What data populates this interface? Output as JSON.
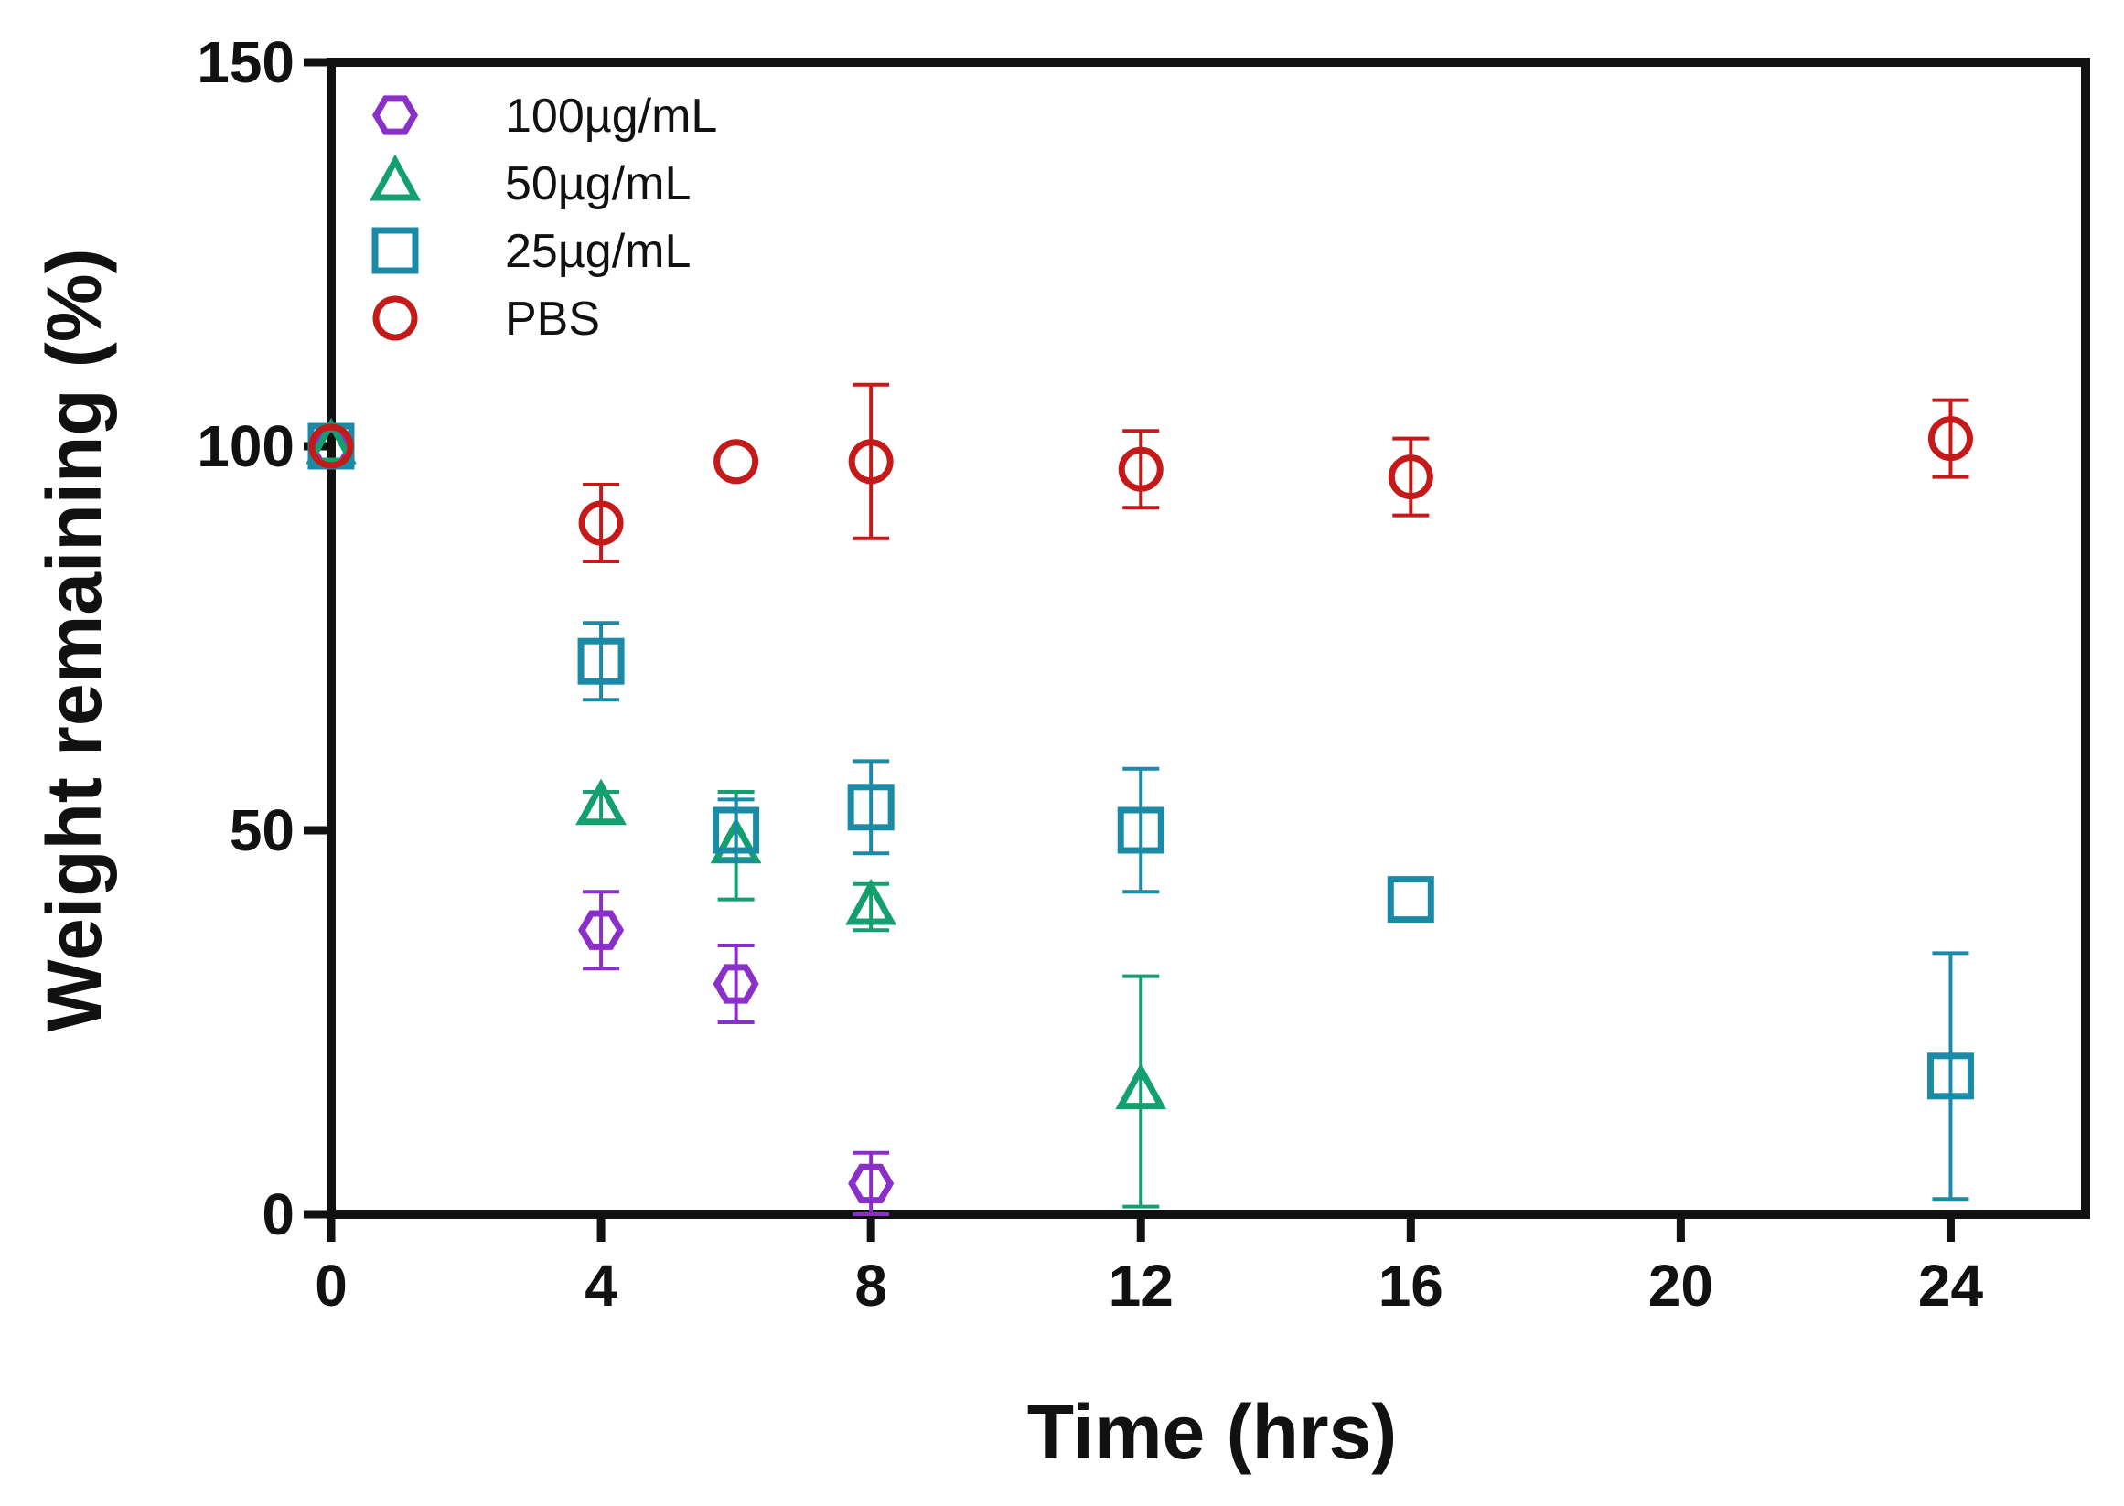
{
  "chart_data": {
    "type": "scatter",
    "title": "",
    "xlabel": "Time (hrs)",
    "ylabel": "Weight remaining (%)",
    "xlim": [
      0,
      26
    ],
    "ylim": [
      0,
      150
    ],
    "xticks": [
      0,
      4,
      8,
      12,
      16,
      20,
      24
    ],
    "yticks": [
      0,
      50,
      100,
      150
    ],
    "legend_position": "top-left",
    "series": [
      {
        "name": "100µg/mL",
        "marker": "hexagon",
        "color": "#8b2fc9",
        "points": [
          {
            "x": 0,
            "y": 100,
            "err": 0
          },
          {
            "x": 4,
            "y": 37,
            "err": 5
          },
          {
            "x": 6,
            "y": 30,
            "err": 5
          },
          {
            "x": 8,
            "y": 4,
            "err": 4
          }
        ]
      },
      {
        "name": "50µg/mL",
        "marker": "triangle",
        "color": "#14a06e",
        "points": [
          {
            "x": 0,
            "y": 100,
            "err": 0
          },
          {
            "x": 4,
            "y": 53,
            "err": 2
          },
          {
            "x": 6,
            "y": 48,
            "err": 7
          },
          {
            "x": 8,
            "y": 40,
            "err": 3
          },
          {
            "x": 12,
            "y": 16,
            "err": 15
          }
        ]
      },
      {
        "name": "25µg/mL",
        "marker": "square",
        "color": "#1a8aa6",
        "points": [
          {
            "x": 0,
            "y": 100,
            "err": 0
          },
          {
            "x": 4,
            "y": 72,
            "err": 5
          },
          {
            "x": 6,
            "y": 50,
            "err": 4
          },
          {
            "x": 8,
            "y": 53,
            "err": 6
          },
          {
            "x": 12,
            "y": 50,
            "err": 8
          },
          {
            "x": 16,
            "y": 41,
            "err": 0
          },
          {
            "x": 24,
            "y": 18,
            "err": 16
          }
        ]
      },
      {
        "name": "PBS",
        "marker": "circle",
        "color": "#c41a1a",
        "points": [
          {
            "x": 0,
            "y": 100,
            "err": 0
          },
          {
            "x": 4,
            "y": 90,
            "err": 5
          },
          {
            "x": 6,
            "y": 98,
            "err": 0
          },
          {
            "x": 8,
            "y": 98,
            "err": 10
          },
          {
            "x": 12,
            "y": 97,
            "err": 5
          },
          {
            "x": 16,
            "y": 96,
            "err": 5
          },
          {
            "x": 24,
            "y": 101,
            "err": 5
          }
        ]
      }
    ]
  }
}
